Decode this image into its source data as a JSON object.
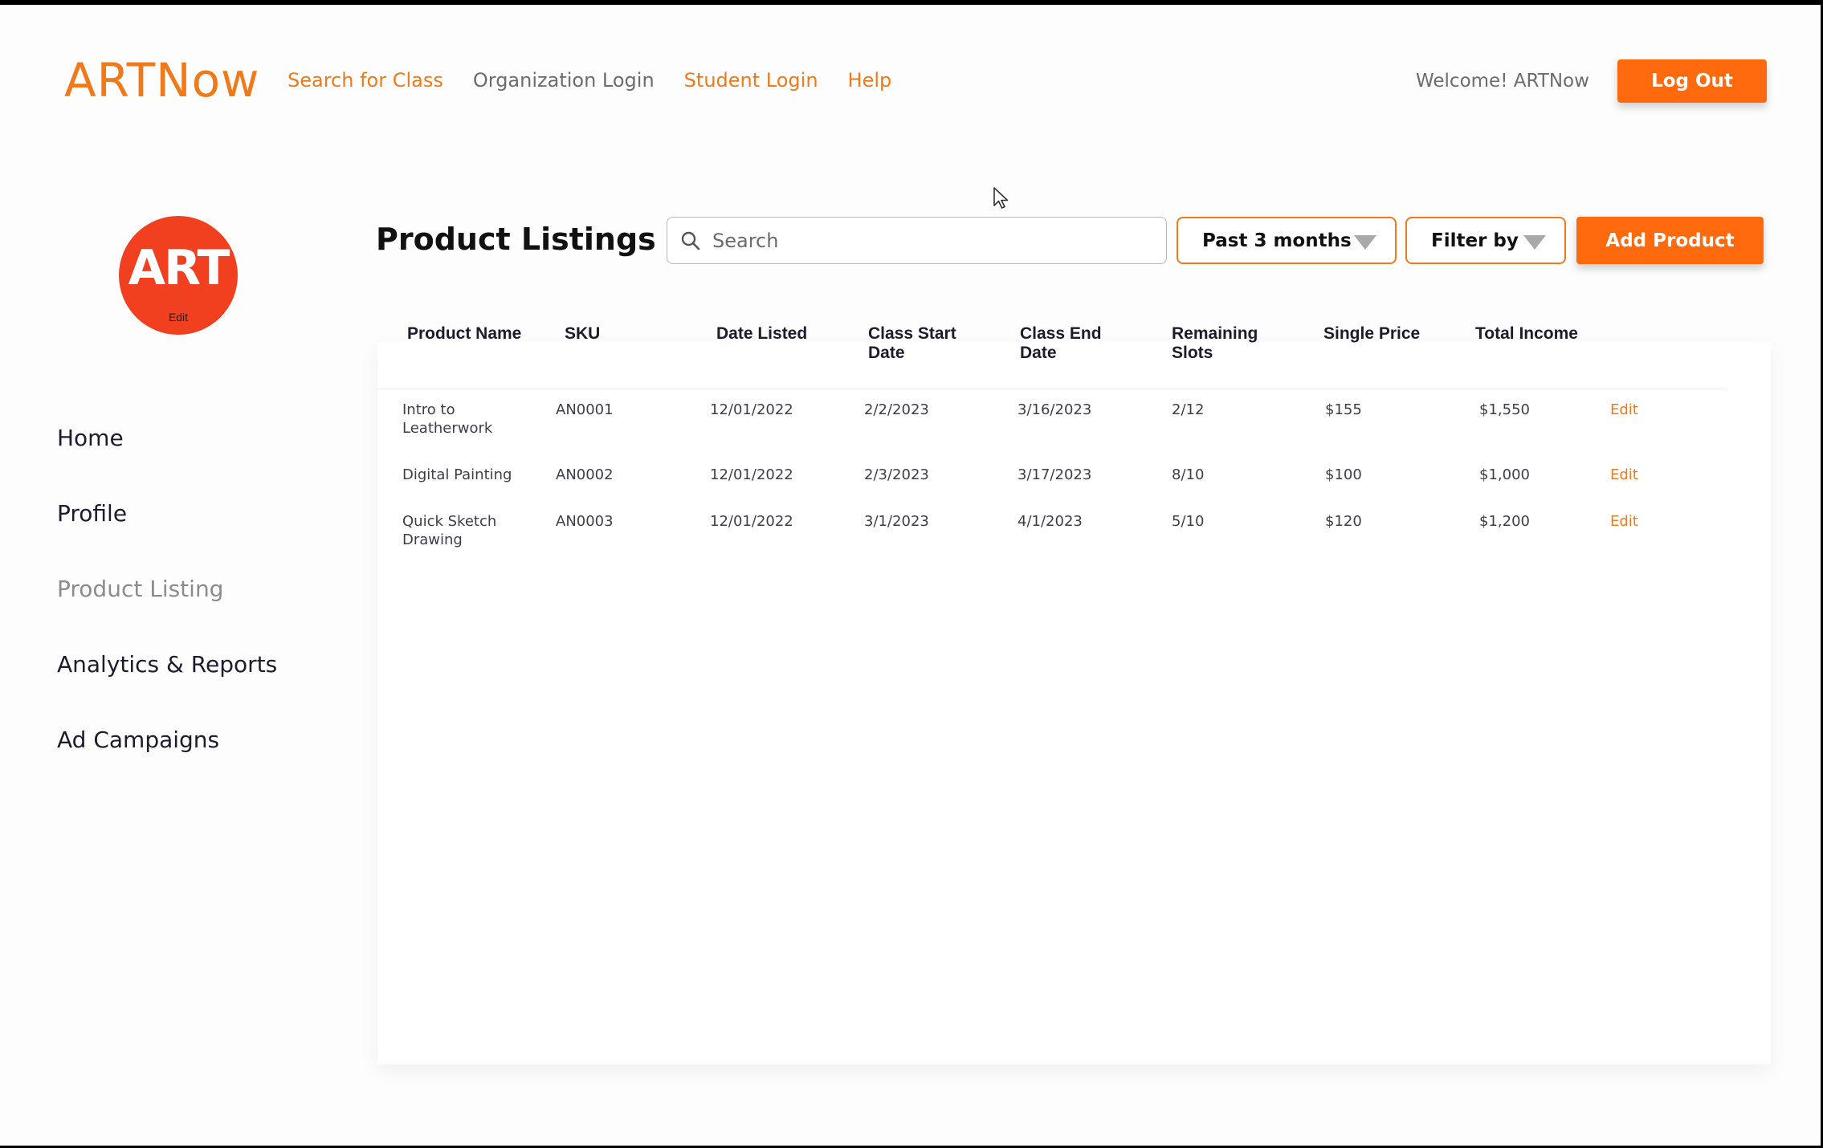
{
  "header": {
    "logo": "ARTNow",
    "nav": [
      {
        "label": "Search for Class"
      },
      {
        "label": "Organization Login"
      },
      {
        "label": "Student Login"
      },
      {
        "label": "Help"
      }
    ],
    "welcome": "Welcome! ARTNow",
    "logout_label": "Log Out"
  },
  "sidebar": {
    "avatar_text": "ART",
    "avatar_edit": "Edit",
    "items": [
      {
        "label": "Home"
      },
      {
        "label": "Profile"
      },
      {
        "label": "Product Listing"
      },
      {
        "label": "Analytics & Reports"
      },
      {
        "label": "Ad Campaigns"
      }
    ]
  },
  "main": {
    "title": "Product Listings",
    "search": {
      "placeholder": "Search",
      "value": ""
    },
    "period_label": "Past 3 months",
    "filter_label": "Filter by",
    "add_label": "Add Product",
    "table": {
      "columns": [
        "Product Name",
        "SKU",
        "Date Listed",
        "Class Start Date",
        "Class End Date",
        "Remaining Slots",
        "Single Price",
        "Total Income"
      ],
      "rows": [
        {
          "name": "Intro to Leatherwork",
          "sku": "AN0001",
          "date_listed": "12/01/2022",
          "start": "2/2/2023",
          "end": "3/16/2023",
          "slots": "2/12",
          "price": "$155",
          "income": "$1,550",
          "action": "Edit"
        },
        {
          "name": "Digital Painting",
          "sku": "AN0002",
          "date_listed": "12/01/2022",
          "start": "2/3/2023",
          "end": "3/17/2023",
          "slots": "8/10",
          "price": "$100",
          "income": "$1,000",
          "action": "Edit"
        },
        {
          "name": "Quick Sketch Drawing",
          "sku": "AN0003",
          "date_listed": "12/01/2022",
          "start": "3/1/2023",
          "end": "4/1/2023",
          "slots": "5/10",
          "price": "$120",
          "income": "$1,200",
          "action": "Edit"
        }
      ]
    }
  },
  "colors": {
    "accent": "#ff6a0e",
    "brand_text": "#f07a1a",
    "avatar": "#f0401f"
  }
}
